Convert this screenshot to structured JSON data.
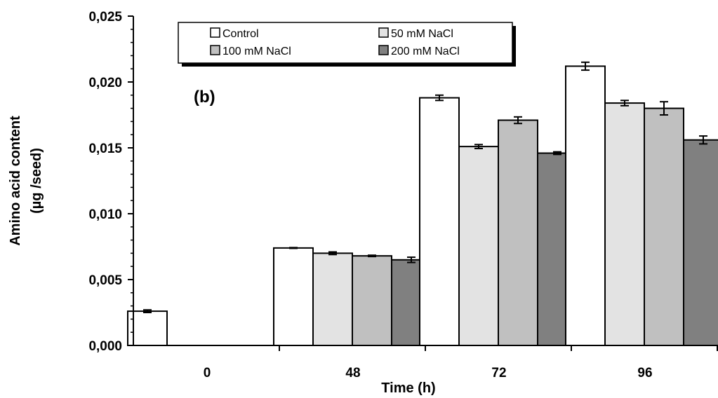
{
  "chart_data": {
    "type": "bar",
    "panel_label": "(b)",
    "xlabel": "Time (h)",
    "ylabel_lines": [
      "Amino acid content",
      "(µg /seed)"
    ],
    "categories": [
      "0",
      "48",
      "72",
      "96"
    ],
    "ylim": [
      0,
      0.025
    ],
    "yticks": [
      "0,000",
      "0,005",
      "0,010",
      "0,015",
      "0,020",
      "0,025"
    ],
    "grid": false,
    "legend_position": "top",
    "series": [
      {
        "name": "Control",
        "color": "#ffffff",
        "values": [
          0.0026,
          0.0074,
          0.0188,
          0.0212
        ],
        "errors": [
          0.0001,
          3e-05,
          0.0002,
          0.0003
        ]
      },
      {
        "name": "50 mM NaCl",
        "color": "#e3e3e3",
        "values": [
          null,
          0.007,
          0.0151,
          0.0184
        ],
        "errors": [
          null,
          0.0001,
          0.00015,
          0.0002
        ]
      },
      {
        "name": "100 mM NaCl",
        "color": "#c0c0c0",
        "values": [
          null,
          0.0068,
          0.0171,
          0.018
        ],
        "errors": [
          null,
          5e-05,
          0.00025,
          0.0005
        ]
      },
      {
        "name": "200 mM NaCl",
        "color": "#808080",
        "values": [
          null,
          0.0065,
          0.0146,
          0.0156
        ],
        "errors": [
          null,
          0.0002,
          0.0001,
          0.0003
        ]
      }
    ]
  }
}
